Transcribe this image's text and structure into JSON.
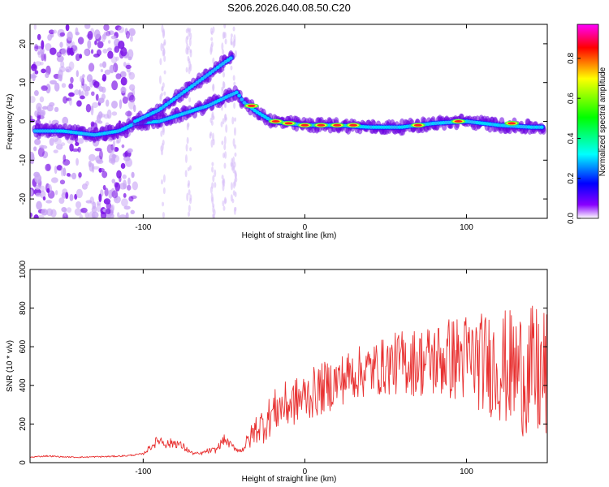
{
  "title": "S206.2026.040.08.50.C20",
  "chart_data": [
    {
      "type": "heatmap",
      "xlabel": "Height of straight line (km)",
      "ylabel": "Frequency (Hz)",
      "xlim": [
        -170,
        150
      ],
      "ylim": [
        -25,
        25
      ],
      "xticks": [
        -100,
        0,
        100
      ],
      "yticks": [
        -20,
        -10,
        0,
        10,
        20
      ],
      "colorbar": {
        "label": "Normalized spectral amplitude",
        "range": [
          0,
          0.97
        ],
        "ticks": [
          0.0,
          0.2,
          0.4,
          0.6,
          0.8
        ],
        "tick_labels": [
          "0.0",
          "0.2",
          "0.4",
          "0.6",
          "0.8"
        ],
        "colors": [
          "#ff00ff",
          "#ff0000",
          "#ffff00",
          "#00ff00",
          "#00ffff",
          "#0000ff",
          "#8800ff",
          "#ffffff"
        ]
      },
      "ridges": [
        {
          "name": "main ridge",
          "points": [
            [
              -167,
              -2.5
            ],
            [
              -150,
              -2.5
            ],
            [
              -130,
              -3.5
            ],
            [
              -115,
              -2.5
            ],
            [
              -105,
              -0.5
            ],
            [
              -90,
              0
            ],
            [
              -75,
              2
            ],
            [
              -60,
              4
            ],
            [
              -50,
              6
            ],
            [
              -42,
              7.5
            ],
            [
              -38,
              5
            ],
            [
              -30,
              2.5
            ],
            [
              -20,
              0
            ],
            [
              -10,
              -0.5
            ],
            [
              0,
              -1
            ],
            [
              20,
              -1
            ],
            [
              40,
              -1.5
            ],
            [
              60,
              -1.5
            ],
            [
              80,
              -0.5
            ],
            [
              100,
              0
            ],
            [
              120,
              -1
            ],
            [
              140,
              -1.5
            ],
            [
              148,
              -1.5
            ]
          ]
        },
        {
          "name": "upper branch",
          "points": [
            [
              -105,
              0
            ],
            [
              -90,
              3
            ],
            [
              -80,
              6
            ],
            [
              -70,
              9
            ],
            [
              -60,
              12
            ],
            [
              -52,
              14.5
            ],
            [
              -45,
              16.5
            ]
          ]
        }
      ],
      "peaks": [
        [
          -33,
          4
        ],
        [
          -18,
          0
        ],
        [
          -10,
          -0.5
        ],
        [
          0,
          -1
        ],
        [
          10,
          -1
        ],
        [
          20,
          -1
        ],
        [
          30,
          -1
        ],
        [
          70,
          -1
        ],
        [
          95,
          0
        ],
        [
          128,
          -0.5
        ]
      ]
    },
    {
      "type": "line",
      "xlabel": "Height of straight line (km)",
      "ylabel": "SNR (10 * v/v)",
      "xlim": [
        -170,
        150
      ],
      "ylim": [
        0,
        1000
      ],
      "xticks": [
        -100,
        0,
        100
      ],
      "yticks": [
        0,
        200,
        400,
        600,
        800,
        1000
      ],
      "series": [
        {
          "name": "SNR",
          "color": "#e83030",
          "x": [
            -170,
            -160,
            -150,
            -140,
            -130,
            -120,
            -110,
            -100,
            -95,
            -90,
            -85,
            -80,
            -75,
            -70,
            -65,
            -60,
            -55,
            -50,
            -45,
            -40,
            -35,
            -30,
            -25,
            -20,
            -15,
            -10,
            -5,
            0,
            10,
            20,
            30,
            40,
            50,
            60,
            70,
            80,
            90,
            100,
            110,
            120,
            130,
            140,
            145,
            150
          ],
          "values": [
            28,
            35,
            30,
            28,
            30,
            32,
            36,
            45,
            85,
            120,
            95,
            105,
            80,
            50,
            45,
            60,
            65,
            120,
            85,
            60,
            110,
            180,
            200,
            260,
            290,
            300,
            320,
            340,
            380,
            420,
            460,
            480,
            500,
            520,
            520,
            530,
            540,
            540,
            520,
            500,
            480,
            460,
            450,
            440
          ],
          "noise": [
            3,
            4,
            3,
            3,
            4,
            4,
            4,
            5,
            20,
            30,
            25,
            28,
            20,
            10,
            8,
            14,
            16,
            25,
            18,
            12,
            50,
            80,
            100,
            110,
            120,
            125,
            125,
            130,
            135,
            135,
            135,
            140,
            150,
            170,
            180,
            200,
            220,
            240,
            260,
            290,
            320,
            350,
            370,
            380
          ]
        }
      ]
    }
  ]
}
